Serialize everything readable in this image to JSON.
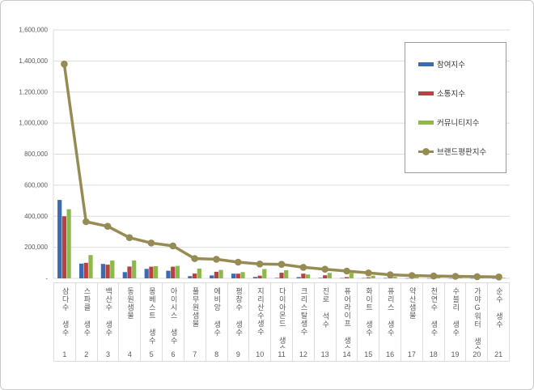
{
  "chart_data": {
    "type": "combo",
    "title": "",
    "xlabel": "",
    "ylabel": "",
    "categories": [
      "삼다수 생수",
      "스파클 생수",
      "백산수 생수",
      "동원샘물",
      "몽베스트 생수",
      "아이시스 생수",
      "풀무원샘물",
      "에비앙 생수",
      "평창수 생수",
      "지리산수생수",
      "다이아몬드 생수",
      "크리스탈생수",
      "진로 석수",
      "퓨어라이프 생수",
      "화이트 생수",
      "퓨리스 생수",
      "약산샘물",
      "천연수 생수",
      "수블리 생수",
      "가야G워터 생수",
      "순수 생수"
    ],
    "ranks": [
      "1",
      "2",
      "3",
      "4",
      "5",
      "6",
      "7",
      "8",
      "9",
      "10",
      "11",
      "12",
      "13",
      "14",
      "15",
      "16",
      "17",
      "18",
      "19",
      "20",
      "21"
    ],
    "series": [
      {
        "name": "참여지수",
        "kind": "bar",
        "color": "#3a6cb3",
        "values": [
          505000,
          95000,
          93000,
          40000,
          61000,
          49000,
          14000,
          19000,
          30000,
          9000,
          3000,
          8000,
          3000,
          2000,
          2000,
          2000,
          1500,
          1000,
          1000,
          800,
          500
        ]
      },
      {
        "name": "소통지수",
        "kind": "bar",
        "color": "#b94141",
        "values": [
          400000,
          100000,
          88000,
          76000,
          75000,
          75000,
          31000,
          42000,
          30000,
          17000,
          36000,
          30000,
          20000,
          8000,
          6000,
          4000,
          3500,
          3000,
          2500,
          2000,
          1500
        ]
      },
      {
        "name": "커뮤니티지수",
        "kind": "bar",
        "color": "#8db84a",
        "values": [
          445000,
          150000,
          115000,
          115000,
          78000,
          80000,
          63000,
          54000,
          40000,
          60000,
          52000,
          25000,
          35000,
          35000,
          17000,
          10000,
          8000,
          6000,
          5000,
          4000,
          3000
        ]
      },
      {
        "name": "브랜드평판지수",
        "kind": "line",
        "color": "#968c53",
        "values": [
          1380000,
          365000,
          335000,
          262000,
          228000,
          209000,
          127000,
          123000,
          104000,
          92000,
          90000,
          71000,
          59000,
          47000,
          35000,
          23000,
          18000,
          15000,
          13000,
          11000,
          9000
        ]
      }
    ],
    "ylim": [
      0,
      1600000
    ],
    "ytick_step": 200000,
    "ytick_labels": [
      "-",
      "200,000",
      "400,000",
      "600,000",
      "800,000",
      "1,000,000",
      "1,200,000",
      "1,400,000",
      "1,600,000"
    ],
    "grid": true,
    "legend_position": "upper right",
    "palette": {
      "grid": "#dcdcdc",
      "axis_text": "#595959",
      "table_border": "#dcdcdc",
      "legend_border": "#9a9a9a",
      "frame_border": "#c9c9c9",
      "background": "#ffffff"
    }
  }
}
